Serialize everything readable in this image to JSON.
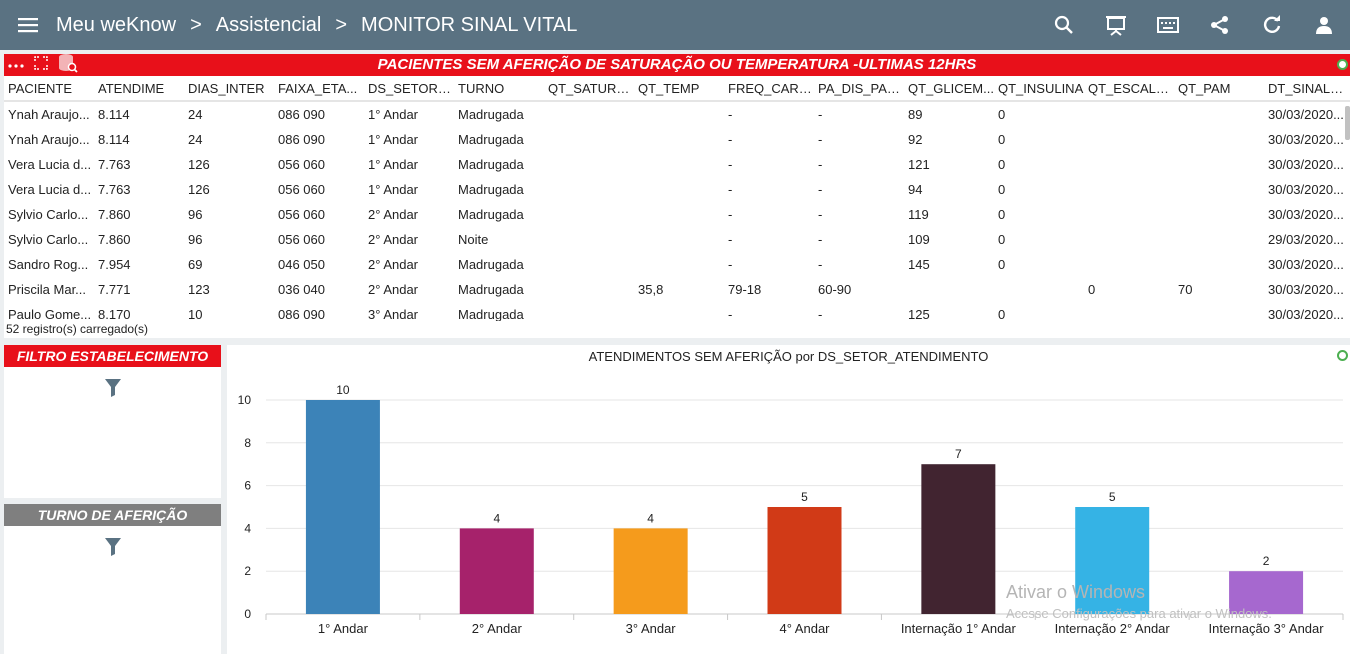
{
  "header": {
    "crumbs": [
      "Meu weKnow",
      "Assistencial",
      "MONITOR SINAL VITAL"
    ],
    "separator": ">",
    "icons": [
      "menu-icon",
      "search-icon",
      "presentation-icon",
      "keyboard-icon",
      "share-icon",
      "refresh-icon",
      "user-icon"
    ]
  },
  "table": {
    "title": "PACIENTES SEM AFERIÇÃO DE SATURAÇÃO OU TEMPERATURA -ULTIMAS 12HRS",
    "columns": [
      "PACIENTE",
      "ATENDIME",
      "DIAS_INTER",
      "FAIXA_ETA...",
      "DS_SETOR_...",
      "TURNO",
      "QT_SATURA...",
      "QT_TEMP",
      "FREQ_CARD...",
      "PA_DIS_PA_...",
      "QT_GLICEM...",
      "QT_INSULINA",
      "QT_ESCALA...",
      "QT_PAM",
      "DT_SINAL_..."
    ],
    "rows": [
      [
        "Ynah Araujo...",
        "8.114",
        "24",
        "086 090",
        "1° Andar",
        "Madrugada",
        "",
        "",
        "-",
        "-",
        "89",
        "0",
        "",
        "",
        "30/03/2020..."
      ],
      [
        "Ynah Araujo...",
        "8.114",
        "24",
        "086 090",
        "1° Andar",
        "Madrugada",
        "",
        "",
        "-",
        "-",
        "92",
        "0",
        "",
        "",
        "30/03/2020..."
      ],
      [
        "Vera Lucia d...",
        "7.763",
        "126",
        "056 060",
        "1° Andar",
        "Madrugada",
        "",
        "",
        "-",
        "-",
        "121",
        "0",
        "",
        "",
        "30/03/2020..."
      ],
      [
        "Vera Lucia d...",
        "7.763",
        "126",
        "056 060",
        "1° Andar",
        "Madrugada",
        "",
        "",
        "-",
        "-",
        "94",
        "0",
        "",
        "",
        "30/03/2020..."
      ],
      [
        "Sylvio Carlo...",
        "7.860",
        "96",
        "056 060",
        "2° Andar",
        "Madrugada",
        "",
        "",
        "-",
        "-",
        "119",
        "0",
        "",
        "",
        "30/03/2020..."
      ],
      [
        "Sylvio Carlo...",
        "7.860",
        "96",
        "056 060",
        "2° Andar",
        "Noite",
        "",
        "",
        "-",
        "-",
        "109",
        "0",
        "",
        "",
        "29/03/2020..."
      ],
      [
        "Sandro Rog...",
        "7.954",
        "69",
        "046 050",
        "2° Andar",
        "Madrugada",
        "",
        "",
        "-",
        "-",
        "145",
        "0",
        "",
        "",
        "30/03/2020..."
      ],
      [
        "Priscila Mar...",
        "7.771",
        "123",
        "036 040",
        "2° Andar",
        "Madrugada",
        "",
        "35,8",
        "79-18",
        "60-90",
        "",
        "",
        "0",
        "70",
        "30/03/2020..."
      ],
      [
        "Paulo Gome...",
        "8.170",
        "10",
        "086 090",
        "3° Andar",
        "Madrugada",
        "",
        "",
        "-",
        "-",
        "125",
        "0",
        "",
        "",
        "30/03/2020..."
      ]
    ],
    "footer": "52 registro(s) carregado(s)"
  },
  "filters": {
    "estabelecimento": {
      "label": "FILTRO ESTABELECIMENTO",
      "color": "#e8101a"
    },
    "turno": {
      "label": "TURNO DE AFERIÇÃO",
      "color": "#7f7f7f"
    }
  },
  "chart_data": {
    "type": "bar",
    "title": "ATENDIMENTOS SEM AFERIÇÃO por DS_SETOR_ATENDIMENTO",
    "categories": [
      "1° Andar",
      "2° Andar",
      "3° Andar",
      "4° Andar",
      "Internação 1° Andar",
      "Internação 2° Andar",
      "Internação 3° Andar"
    ],
    "values": [
      10,
      4,
      4,
      5,
      7,
      5,
      2
    ],
    "colors": [
      "#3c83b8",
      "#a6226b",
      "#f59b1c",
      "#d13a17",
      "#412430",
      "#35b3e5",
      "#a668cf"
    ],
    "yticks": [
      0,
      2,
      4,
      6,
      8,
      10
    ],
    "ylim": [
      0,
      10
    ],
    "grid": true,
    "xlabel": "",
    "ylabel": ""
  },
  "watermark": {
    "line1": "Ativar o Windows",
    "line2": "Acesse Configurações para ativar o Windows."
  }
}
